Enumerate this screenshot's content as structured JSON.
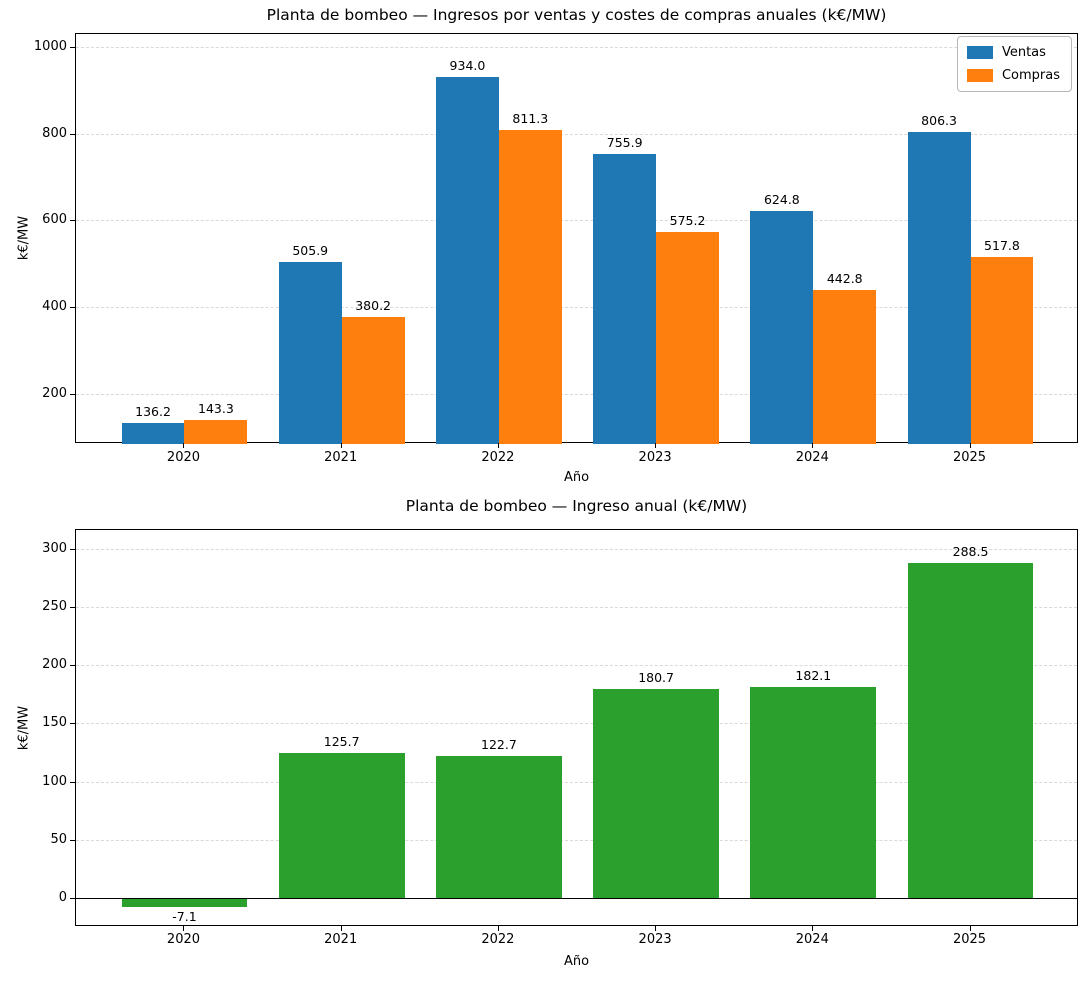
{
  "colors": {
    "ventas": "#1f77b4",
    "compras": "#ff7f0e",
    "ingreso": "#2ca02c",
    "grid": "#d9d9d9",
    "spine": "#000000",
    "background": "#ffffff"
  },
  "chart_data": [
    {
      "type": "bar",
      "title": "Planta de bombeo — Ingresos por ventas y costes de compras anuales (k€/MW)",
      "xlabel": "Año",
      "ylabel": "k€/MW",
      "categories": [
        "2020",
        "2021",
        "2022",
        "2023",
        "2024",
        "2025"
      ],
      "series": [
        {
          "name": "Ventas",
          "color": "#1f77b4",
          "values": [
            136.2,
            505.9,
            934.0,
            755.9,
            624.8,
            806.3
          ]
        },
        {
          "name": "Compras",
          "color": "#ff7f0e",
          "values": [
            143.3,
            380.2,
            811.3,
            575.2,
            442.8,
            517.8
          ]
        }
      ],
      "value_label_decimals": 1,
      "yticks": [
        200,
        400,
        600,
        800,
        1000
      ],
      "ylim": [
        87,
        1032
      ],
      "grid": true,
      "legend": {
        "position": "upper right",
        "entries": [
          "Ventas",
          "Compras"
        ]
      }
    },
    {
      "type": "bar",
      "title": "Planta de bombeo — Ingreso anual (k€/MW)",
      "xlabel": "Año",
      "ylabel": "k€/MW",
      "categories": [
        "2020",
        "2021",
        "2022",
        "2023",
        "2024",
        "2025"
      ],
      "series": [
        {
          "name": "Ingreso",
          "color": "#2ca02c",
          "values": [
            -7.1,
            125.7,
            122.7,
            180.7,
            182.1,
            288.5
          ]
        }
      ],
      "value_label_decimals": 1,
      "yticks": [
        0,
        50,
        100,
        150,
        200,
        250,
        300
      ],
      "ylim": [
        -24,
        317
      ],
      "grid": true,
      "zero_line": true
    }
  ]
}
